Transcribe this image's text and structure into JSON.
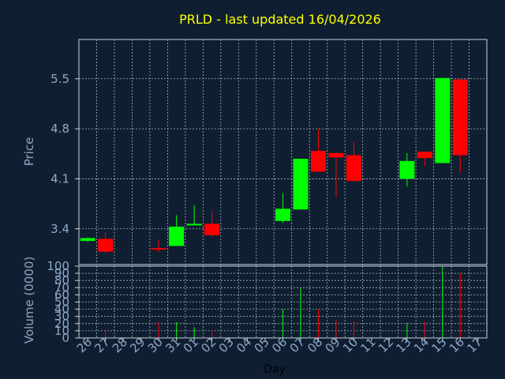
{
  "chart_data": {
    "type": "candlestick",
    "title": "PRLD - last updated 16/04/2026",
    "xlabel": "Day",
    "price_panel": {
      "ylabel": "Price",
      "yticks": [
        "3.4",
        "4.1",
        "4.8",
        "5.5"
      ],
      "ylim": [
        2.9,
        6.05
      ],
      "grid": true
    },
    "volume_panel": {
      "ylabel": "Volume (0000)",
      "yticks": [
        "0",
        "10",
        "20",
        "30",
        "40",
        "50",
        "60",
        "70",
        "80",
        "90",
        "100"
      ],
      "ylim": [
        0,
        100
      ],
      "grid": true
    },
    "x_tick_labels": [
      "26",
      "27",
      "28",
      "29",
      "30",
      "31",
      "01",
      "02",
      "03",
      "04",
      "05",
      "06",
      "07",
      "08",
      "09",
      "10",
      "11",
      "12",
      "13",
      "14",
      "15",
      "16",
      "17"
    ],
    "candles": [
      {
        "x": 0,
        "open": 3.23,
        "close": 3.27,
        "high": 3.28,
        "low": 3.22,
        "volume": 0
      },
      {
        "x": 1,
        "open": 3.26,
        "close": 3.08,
        "high": 3.35,
        "low": 3.05,
        "volume": 12
      },
      {
        "x": 4,
        "open": 3.13,
        "close": 3.11,
        "high": 3.25,
        "low": 3.07,
        "volume": 22
      },
      {
        "x": 5,
        "open": 3.16,
        "close": 3.43,
        "high": 3.59,
        "low": 3.16,
        "volume": 22
      },
      {
        "x": 6,
        "open": 3.45,
        "close": 3.47,
        "high": 3.73,
        "low": 3.45,
        "volume": 15
      },
      {
        "x": 7,
        "open": 3.47,
        "close": 3.31,
        "high": 3.65,
        "low": 3.29,
        "volume": 11
      },
      {
        "x": 11,
        "open": 3.51,
        "close": 3.68,
        "high": 3.9,
        "low": 3.48,
        "volume": 40
      },
      {
        "x": 12,
        "open": 3.67,
        "close": 4.38,
        "high": 4.38,
        "low": 3.67,
        "volume": 69
      },
      {
        "x": 13,
        "open": 4.49,
        "close": 4.2,
        "high": 4.8,
        "low": 4.2,
        "volume": 40
      },
      {
        "x": 14,
        "open": 4.46,
        "close": 4.4,
        "high": 4.46,
        "low": 3.84,
        "volume": 26
      },
      {
        "x": 15,
        "open": 4.43,
        "close": 4.07,
        "high": 4.62,
        "low": 4.07,
        "volume": 23
      },
      {
        "x": 18,
        "open": 4.1,
        "close": 4.35,
        "high": 4.46,
        "low": 3.99,
        "volume": 21
      },
      {
        "x": 19,
        "open": 4.48,
        "close": 4.39,
        "high": 4.48,
        "low": 4.28,
        "volume": 23
      },
      {
        "x": 20,
        "open": 4.32,
        "close": 5.51,
        "high": 5.51,
        "low": 4.32,
        "volume": 99
      },
      {
        "x": 21,
        "open": 5.49,
        "close": 4.43,
        "high": 5.49,
        "low": 4.19,
        "volume": 90
      }
    ]
  }
}
